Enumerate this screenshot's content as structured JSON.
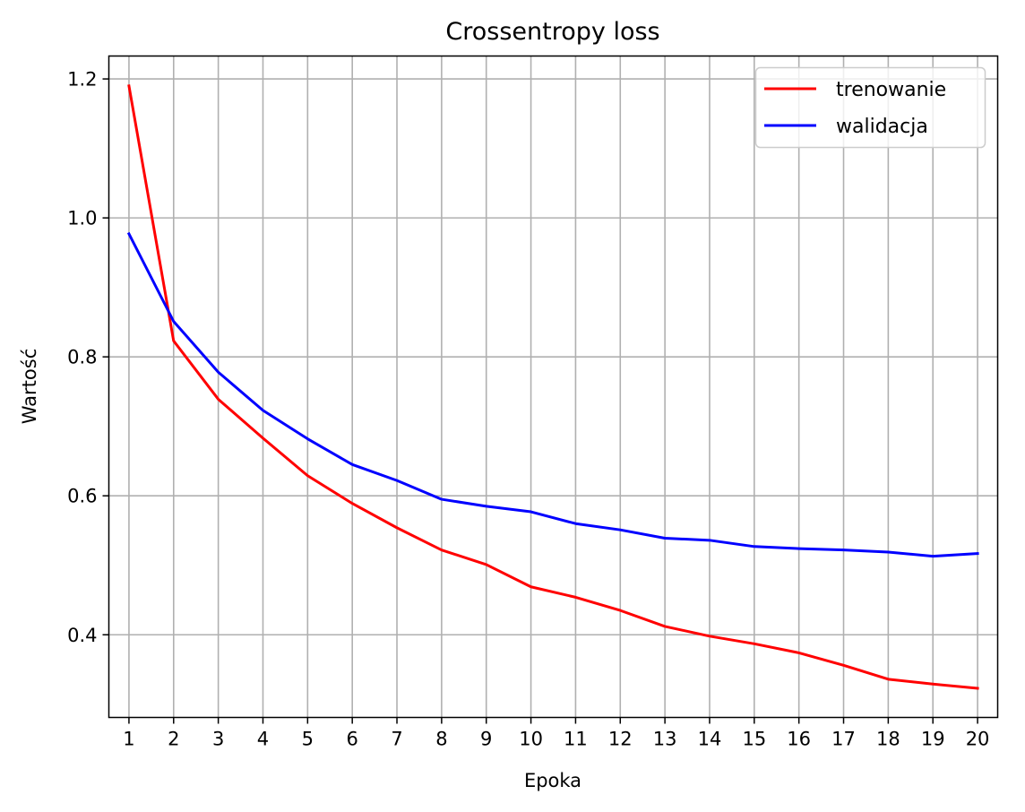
{
  "chart_data": {
    "type": "line",
    "title": "Crossentropy loss",
    "xlabel": "Epoka",
    "ylabel": "Wartość",
    "x": [
      1,
      2,
      3,
      4,
      5,
      6,
      7,
      8,
      9,
      10,
      11,
      12,
      13,
      14,
      15,
      16,
      17,
      18,
      19,
      20
    ],
    "xticks": [
      "1",
      "2",
      "3",
      "4",
      "5",
      "6",
      "7",
      "8",
      "9",
      "10",
      "11",
      "12",
      "13",
      "14",
      "15",
      "16",
      "17",
      "18",
      "19",
      "20"
    ],
    "xlim": [
      0.55,
      20.45
    ],
    "ylim": [
      0.281,
      1.233
    ],
    "yticks": [
      0.4,
      0.6,
      0.8,
      1.0,
      1.2
    ],
    "ytick_labels": [
      "0.4",
      "0.6",
      "0.8",
      "1.0",
      "1.2"
    ],
    "grid": true,
    "legend_position": "top-right",
    "series": [
      {
        "name": "trenowanie",
        "color": "#ff0000",
        "values": [
          1.19,
          0.823,
          0.739,
          0.683,
          0.629,
          0.589,
          0.554,
          0.522,
          0.501,
          0.469,
          0.454,
          0.435,
          0.412,
          0.398,
          0.387,
          0.374,
          0.356,
          0.336,
          0.329,
          0.323
        ]
      },
      {
        "name": "walidacja",
        "color": "#0000ff",
        "values": [
          0.977,
          0.851,
          0.778,
          0.723,
          0.682,
          0.645,
          0.622,
          0.595,
          0.585,
          0.577,
          0.56,
          0.551,
          0.539,
          0.536,
          0.527,
          0.524,
          0.522,
          0.519,
          0.513,
          0.517
        ]
      }
    ]
  }
}
